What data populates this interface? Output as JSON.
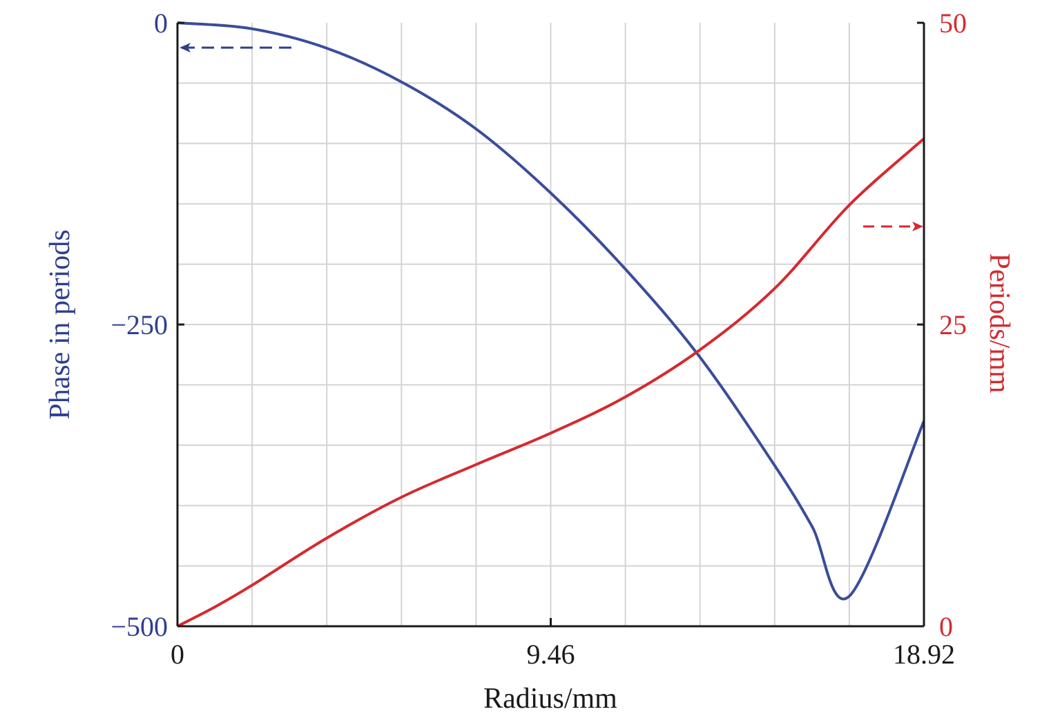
{
  "chart_data": {
    "type": "line",
    "title": "",
    "xlabel": "Radius/mm",
    "ylabel_left": "Phase in periods",
    "ylabel_right": "Periods/mm",
    "xlim": [
      0,
      18.92
    ],
    "ylim_left": [
      -500,
      0
    ],
    "ylim_right": [
      0,
      50
    ],
    "x_ticks": [
      "0",
      "9.46",
      "18.92"
    ],
    "y_left_ticks": [
      "0",
      "−250",
      "−500"
    ],
    "y_right_ticks": [
      "50",
      "25",
      "0"
    ],
    "grid": true,
    "colors": {
      "left_axis": "#2e3f8f",
      "right_axis": "#d42a2f",
      "grid": "#d4d4d4",
      "axis": "#1a1a1a"
    },
    "series": [
      {
        "axis": "left",
        "color": "#3a4d9a",
        "x": [
          0,
          1.89,
          3.78,
          5.68,
          7.57,
          9.46,
          11.35,
          13.24,
          15.14,
          16.08,
          17.03,
          18.92
        ],
        "y": [
          0,
          -5,
          -21,
          -49,
          -88,
          -141,
          -204,
          -277,
          -367,
          -417,
          -475,
          -330
        ]
      },
      {
        "axis": "right",
        "color": "#d42a2f",
        "x": [
          0,
          0.95,
          1.89,
          3.78,
          5.68,
          7.57,
          9.46,
          11.35,
          13.24,
          15.14,
          17.03,
          18.92
        ],
        "y": [
          0,
          1.6,
          3.4,
          7.3,
          10.7,
          13.4,
          16.0,
          19.0,
          22.9,
          28.0,
          34.9,
          40.4
        ]
      }
    ],
    "annotations": [
      {
        "text": "",
        "arrow": "left",
        "color": "#2e3f8f",
        "points_to_axis": "left"
      },
      {
        "text": "",
        "arrow": "right",
        "color": "#d42a2f",
        "points_to_axis": "right"
      }
    ]
  }
}
